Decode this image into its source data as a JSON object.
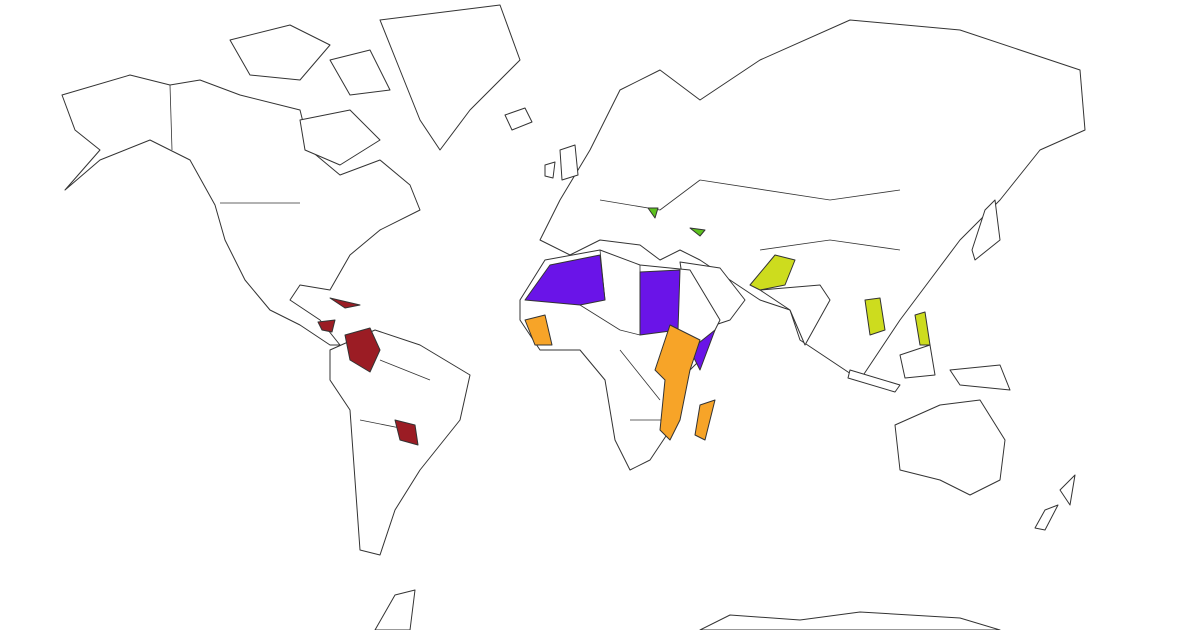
{
  "map": {
    "fill_colors": [
      "#9b1c24",
      "#6a14e8",
      "#f7a428",
      "#cddc1e",
      "#5cc21e"
    ]
  }
}
